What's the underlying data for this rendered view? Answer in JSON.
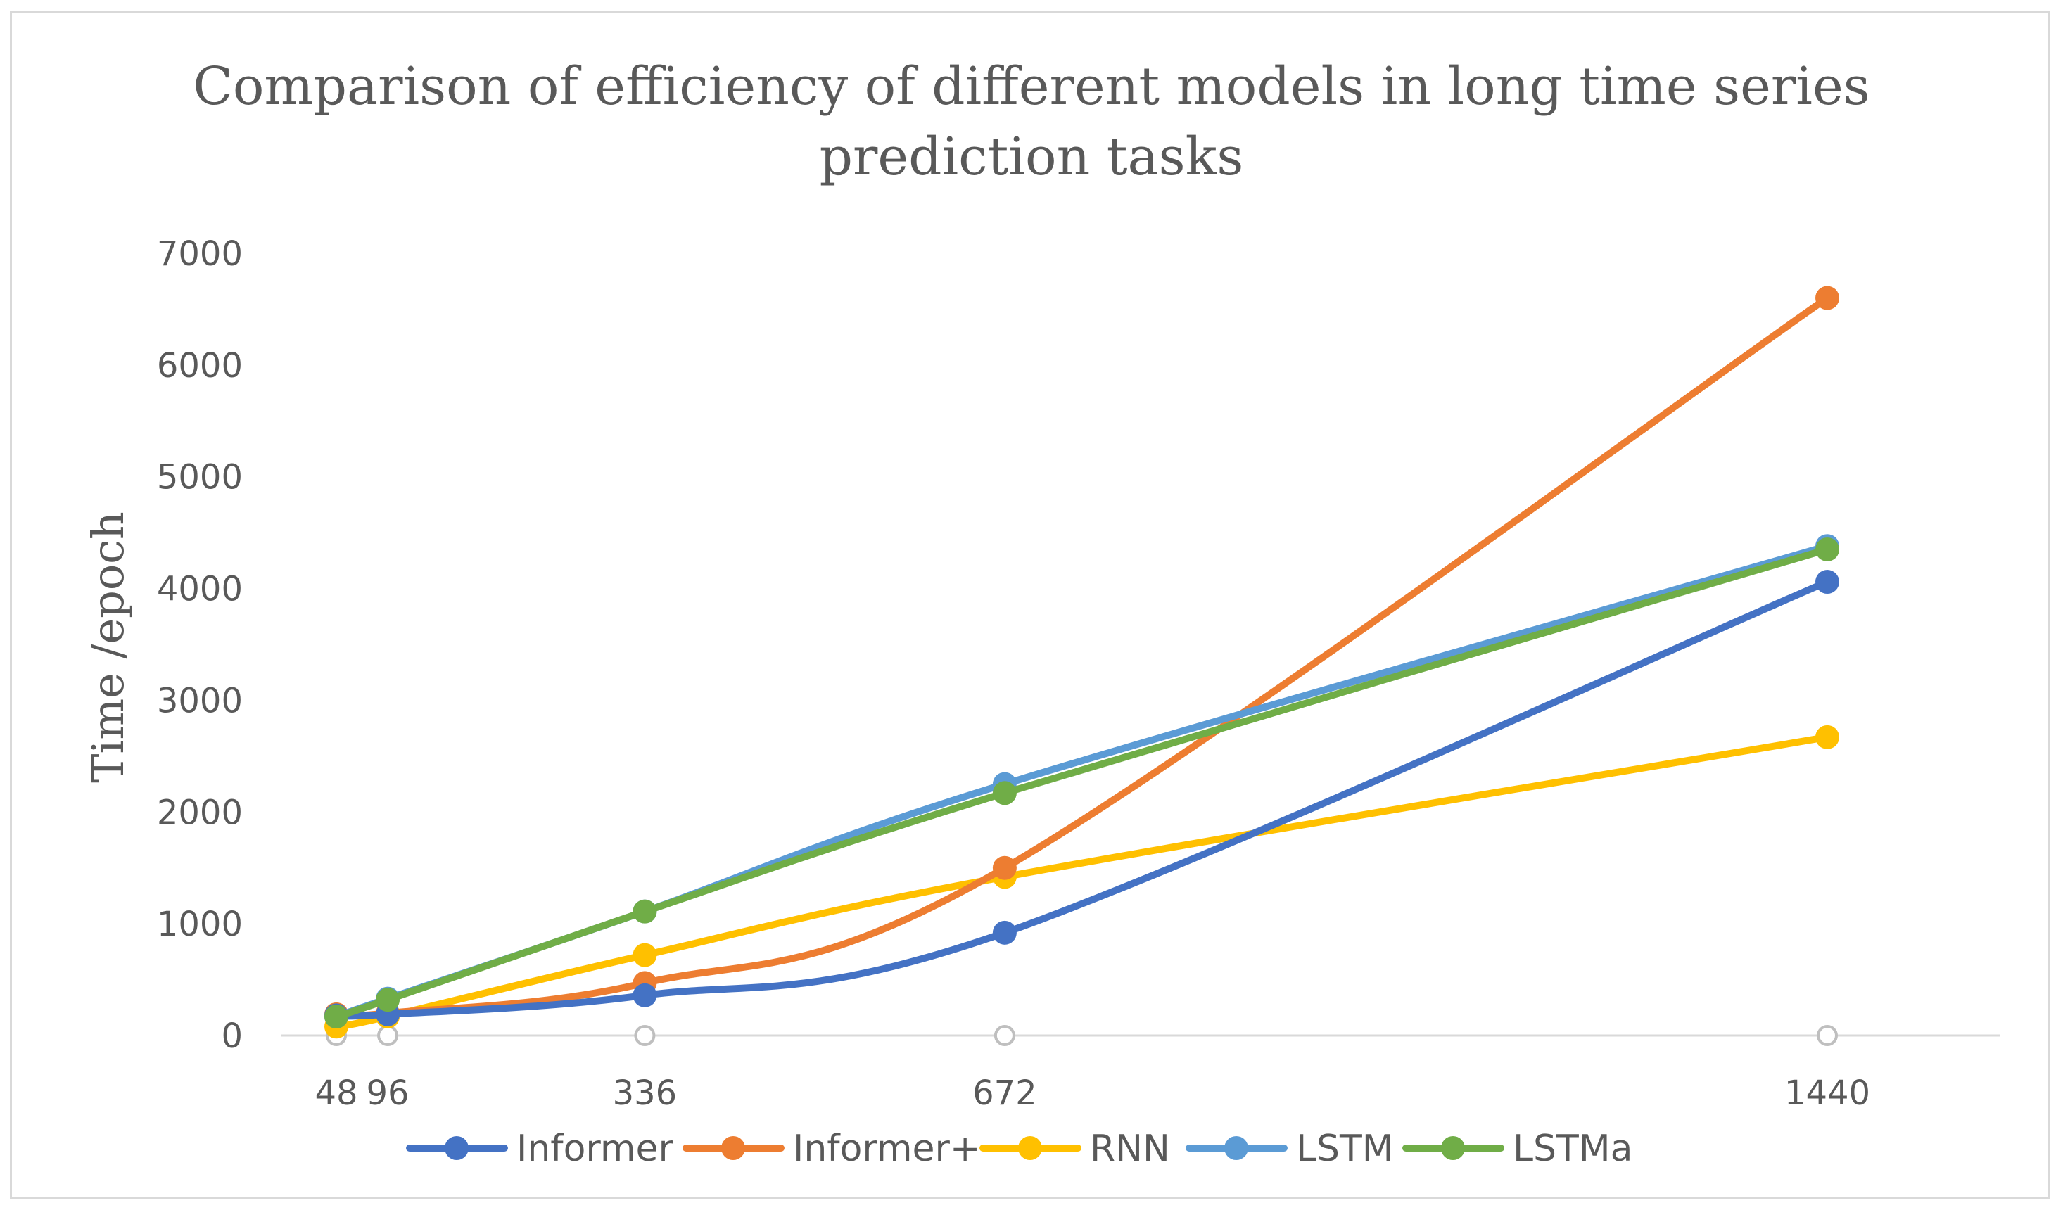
{
  "chart_data": {
    "type": "line",
    "title_lines": [
      "Comparison of efficiency of different models in long time series",
      "prediction tasks"
    ],
    "xlabel": "",
    "ylabel": "Time /epoch",
    "x": [
      48,
      96,
      336,
      672,
      1440
    ],
    "x_tick_labels": [
      "48",
      "96",
      "336",
      "672",
      "1440"
    ],
    "ylim": [
      0,
      7000
    ],
    "y_ticks": [
      0,
      1000,
      2000,
      3000,
      4000,
      5000,
      6000,
      7000
    ],
    "y_tick_labels": [
      "0",
      "1000",
      "2000",
      "3000",
      "4000",
      "5000",
      "6000",
      "7000"
    ],
    "grid": false,
    "legend_position": "bottom",
    "baseline_series": {
      "name": "",
      "values": [
        0,
        0,
        0,
        0,
        0
      ],
      "color": "#bfbfbf"
    },
    "series": [
      {
        "name": "Informer",
        "color": "#4472c4",
        "values": [
          180,
          190,
          360,
          920,
          4060
        ]
      },
      {
        "name": "Informer+",
        "color": "#ed7d31",
        "values": [
          190,
          200,
          470,
          1500,
          6600
        ]
      },
      {
        "name": "RNN",
        "color": "#ffc000",
        "values": [
          80,
          170,
          720,
          1420,
          2670
        ]
      },
      {
        "name": "LSTM",
        "color": "#5b9bd5",
        "values": [
          170,
          330,
          1110,
          2250,
          4380
        ]
      },
      {
        "name": "LSTMa",
        "color": "#70ad47",
        "values": [
          170,
          320,
          1110,
          2170,
          4350
        ]
      }
    ]
  }
}
